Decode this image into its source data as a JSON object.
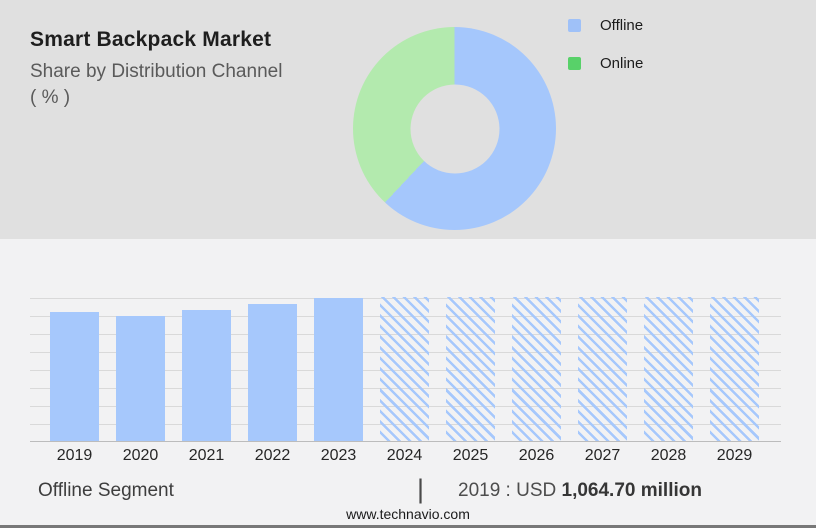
{
  "header": {
    "title": "Smart Backpack Market",
    "subtitle_line1": "Share by Distribution Channel",
    "subtitle_line2": "( % )"
  },
  "legend": {
    "items": [
      {
        "label": "Offline",
        "color": "#9fc1f8"
      },
      {
        "label": "Online",
        "color": "#58d169"
      }
    ]
  },
  "footer": {
    "segment_label": "Offline Segment",
    "separator": "|",
    "value_prefix": "2019 : USD",
    "value_bold": "1,064.70 million",
    "website": "www.technavio.com"
  },
  "colors": {
    "top_panel_bg": "#e0e0e0",
    "bottom_panel_bg": "#f2f2f3",
    "bar_blue": "#a6c8fc",
    "donut_blue": "#a5c7fc",
    "donut_green": "#b3eaae",
    "gridline": "#d9d9d9"
  },
  "chart_data": [
    {
      "type": "pie",
      "subtype": "donut",
      "title": "Smart Backpack Market — Share by Distribution Channel (%)",
      "labels": [
        "Offline",
        "Online"
      ],
      "values": [
        62,
        38
      ],
      "colors": [
        "#a5c7fc",
        "#b3eaae"
      ],
      "legend_position": "right",
      "note": "no data labels shown; slice percentages estimated from arc angles"
    },
    {
      "type": "bar",
      "title": "Offline Segment (USD million)",
      "categories": [
        "2019",
        "2020",
        "2021",
        "2022",
        "2023",
        "2024",
        "2025",
        "2026",
        "2027",
        "2028",
        "2029"
      ],
      "series": [
        {
          "name": "Offline",
          "values": [
            1064.7,
            1031,
            1078,
            1127,
            1180,
            null,
            null,
            null,
            null,
            null,
            null
          ]
        }
      ],
      "hatched": [
        false,
        false,
        false,
        false,
        false,
        true,
        true,
        true,
        true,
        true,
        true
      ],
      "annotation": "2019 : USD 1,064.70 million",
      "xlabel": "",
      "ylabel": "",
      "ylim": [
        0,
        1188
      ],
      "grid": "horizontal",
      "legend_position": "none",
      "bar_color": "#a6c8fc",
      "note": "only 2019 value labeled on image; 2020-2023 estimated from bar heights; 2024-2029 drawn as full-height hatched forecast placeholders"
    }
  ]
}
